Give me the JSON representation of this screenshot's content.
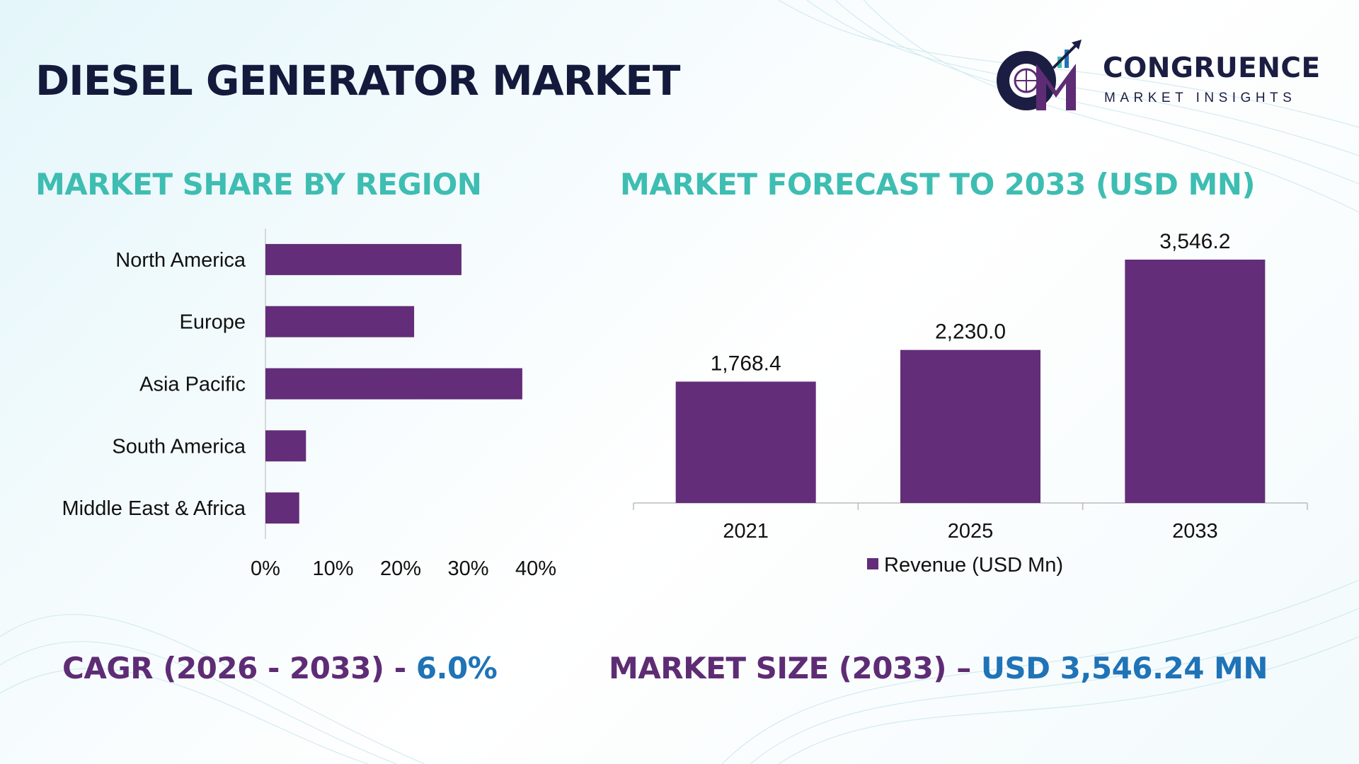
{
  "title": "DIESEL GENERATOR MARKET",
  "logo": {
    "name": "CONGRUENCE",
    "tagline": "MARKET INSIGHTS"
  },
  "footer": {
    "cagr_label": "CAGR (2026 - 2033) -",
    "cagr_value": "6.0%",
    "size_label": "MARKET SIZE (2033) –",
    "size_value": "USD 3,546.24 MN"
  },
  "colors": {
    "bar": "#632d79",
    "heading": "#3ebdb2",
    "title": "#141a3c",
    "accent_value": "#1f73b7",
    "accent_label": "#5e2c74"
  },
  "chart_data": [
    {
      "type": "bar",
      "orientation": "horizontal",
      "title": "MARKET SHARE BY REGION",
      "categories": [
        "North America",
        "Europe",
        "Asia Pacific",
        "South America",
        "Middle East & Africa"
      ],
      "values": [
        29,
        22,
        38,
        6,
        5
      ],
      "xlim": [
        0,
        40
      ],
      "xticks": [
        0,
        10,
        20,
        30,
        40
      ],
      "xtick_labels": [
        "0%",
        "10%",
        "20%",
        "30%",
        "40%"
      ],
      "grid": false
    },
    {
      "type": "bar",
      "title": "MARKET FORECAST TO 2033 (USD MN)",
      "categories": [
        "2021",
        "2025",
        "2033"
      ],
      "series": [
        {
          "name": "Revenue (USD Mn)",
          "values": [
            1768.4,
            2230.0,
            3546.2
          ],
          "labels": [
            "1,768.4",
            "2,230.0",
            "3,546.2"
          ]
        }
      ],
      "ylim": [
        0,
        3546.2
      ],
      "legend": "bottom",
      "grid": false
    }
  ]
}
